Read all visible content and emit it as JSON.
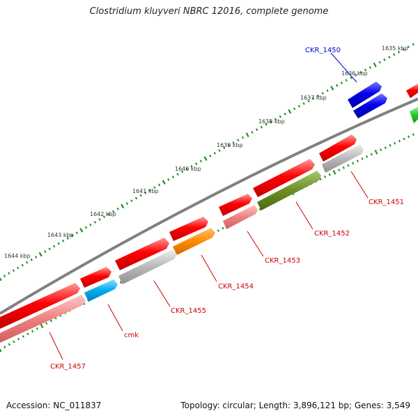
{
  "title": "Clostridium kluyveri NBRC 12016, complete genome",
  "footer": {
    "accession": "Accession: NC_011837",
    "info": "Topology: circular; Length: 3,896,121 bp; Genes: 3,549"
  },
  "kbp_labels": [
    "1635 kbp",
    "1636 kbp",
    "1637 kbp",
    "1638 kbp",
    "1639 kbp",
    "1640 kbp",
    "1641 kbp",
    "1642 kbp",
    "1643 kbp",
    "1644 kbp"
  ],
  "gene_labels": [
    {
      "name": "CKR_1450",
      "color": "#0000cc"
    },
    {
      "name": "CKR_1451",
      "color": "#cc0000"
    },
    {
      "name": "CKR_1452",
      "color": "#cc0000"
    },
    {
      "name": "CKR_1453",
      "color": "#cc0000"
    },
    {
      "name": "CKR_1454",
      "color": "#cc0000"
    },
    {
      "name": "CKR_1455",
      "color": "#cc0000"
    },
    {
      "name": "cmk",
      "color": "#cc0000"
    },
    {
      "name": "CKR_1457",
      "color": "#cc0000"
    }
  ],
  "colors": {
    "red": "#ff0000",
    "light_red": "#f08080",
    "blue": "#0000ee",
    "gray": "#b8b8b8",
    "olive": "#6b8e23",
    "orange": "#ff8c00",
    "cyan": "#00aaee",
    "green": "#22cc22",
    "backbone": "#808080",
    "tick": "#228b22"
  }
}
